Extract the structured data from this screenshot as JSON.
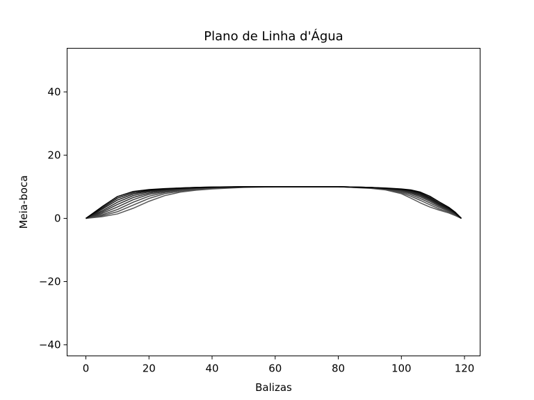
{
  "chart_data": {
    "type": "line",
    "title": "Plano de Linha d'Água",
    "xlabel": "Balizas",
    "ylabel": "Meia-boca",
    "xlim": [
      -5.95,
      124.95
    ],
    "ylim": [
      -43.5,
      53.8
    ],
    "xticks": [
      0,
      20,
      40,
      60,
      80,
      100,
      120
    ],
    "yticks": [
      -40,
      -20,
      0,
      20,
      40
    ],
    "xtick_labels": [
      "0",
      "20",
      "40",
      "60",
      "80",
      "100",
      "120"
    ],
    "ytick_labels": [
      "−40",
      "−20",
      "0",
      "20",
      "40"
    ],
    "grid": false,
    "legend": "none",
    "x": [
      0,
      5,
      10,
      15,
      20,
      25,
      30,
      35,
      40,
      50,
      60,
      70,
      80,
      90,
      95,
      100,
      103,
      106,
      109,
      112,
      115,
      117,
      119
    ],
    "series": [
      {
        "values": [
          0,
          3.6,
          6.9,
          8.5,
          9.1,
          9.4,
          9.6,
          9.8,
          9.9,
          10.0,
          10.0,
          10.0,
          10.0,
          9.8,
          9.6,
          9.3,
          9.0,
          8.3,
          7.0,
          5.2,
          3.5,
          2.0,
          0
        ]
      },
      {
        "values": [
          0,
          3.2,
          6.4,
          8.1,
          8.9,
          9.3,
          9.6,
          9.8,
          9.9,
          10.0,
          10.0,
          10.0,
          10.0,
          9.8,
          9.5,
          9.2,
          8.8,
          8.0,
          6.6,
          4.8,
          3.2,
          1.8,
          0
        ]
      },
      {
        "values": [
          0,
          2.8,
          5.8,
          7.7,
          8.7,
          9.2,
          9.5,
          9.7,
          9.8,
          10.0,
          10.0,
          10.0,
          10.0,
          9.8,
          9.5,
          9.1,
          8.6,
          7.8,
          6.4,
          4.6,
          3.0,
          1.7,
          0
        ]
      },
      {
        "values": [
          0,
          2.3,
          5.1,
          7.2,
          8.4,
          9.0,
          9.4,
          9.6,
          9.8,
          10.0,
          10.0,
          10.0,
          10.0,
          9.8,
          9.4,
          9.0,
          8.4,
          7.5,
          6.1,
          4.4,
          2.9,
          1.6,
          0
        ]
      },
      {
        "values": [
          0,
          1.9,
          4.4,
          6.6,
          8.0,
          8.8,
          9.3,
          9.6,
          9.8,
          10.0,
          10.0,
          10.0,
          10.0,
          9.7,
          9.4,
          8.9,
          8.2,
          7.2,
          5.8,
          4.2,
          2.7,
          1.5,
          0
        ]
      },
      {
        "values": [
          0,
          1.5,
          3.6,
          5.9,
          7.6,
          8.5,
          9.1,
          9.5,
          9.7,
          9.9,
          10.0,
          10.0,
          10.0,
          9.7,
          9.3,
          8.7,
          7.9,
          6.8,
          5.4,
          3.9,
          2.5,
          1.4,
          0
        ]
      },
      {
        "values": [
          0,
          1.1,
          2.8,
          5.1,
          7.0,
          8.2,
          8.9,
          9.3,
          9.6,
          9.9,
          10.0,
          10.0,
          10.0,
          9.6,
          9.2,
          8.4,
          7.5,
          6.3,
          4.9,
          3.5,
          2.3,
          1.2,
          0
        ]
      },
      {
        "values": [
          0,
          0.8,
          2.1,
          4.2,
          6.3,
          7.8,
          8.6,
          9.1,
          9.5,
          9.9,
          10.0,
          10.0,
          10.0,
          9.6,
          9.1,
          8.1,
          7.0,
          5.7,
          4.3,
          3.0,
          2.0,
          1.0,
          0
        ]
      },
      {
        "values": [
          0,
          0.5,
          1.4,
          3.2,
          5.4,
          7.2,
          8.3,
          8.9,
          9.3,
          9.8,
          10.0,
          10.0,
          10.0,
          9.5,
          9.0,
          7.8,
          6.4,
          4.9,
          3.6,
          2.6,
          1.7,
          0.9,
          0
        ]
      }
    ],
    "line_colors": [
      "#000000",
      "#111111",
      "#1c1c1c",
      "#262626",
      "#303030",
      "#3a3a3a",
      "#444444",
      "#4e4e4e",
      "#585858"
    ]
  }
}
